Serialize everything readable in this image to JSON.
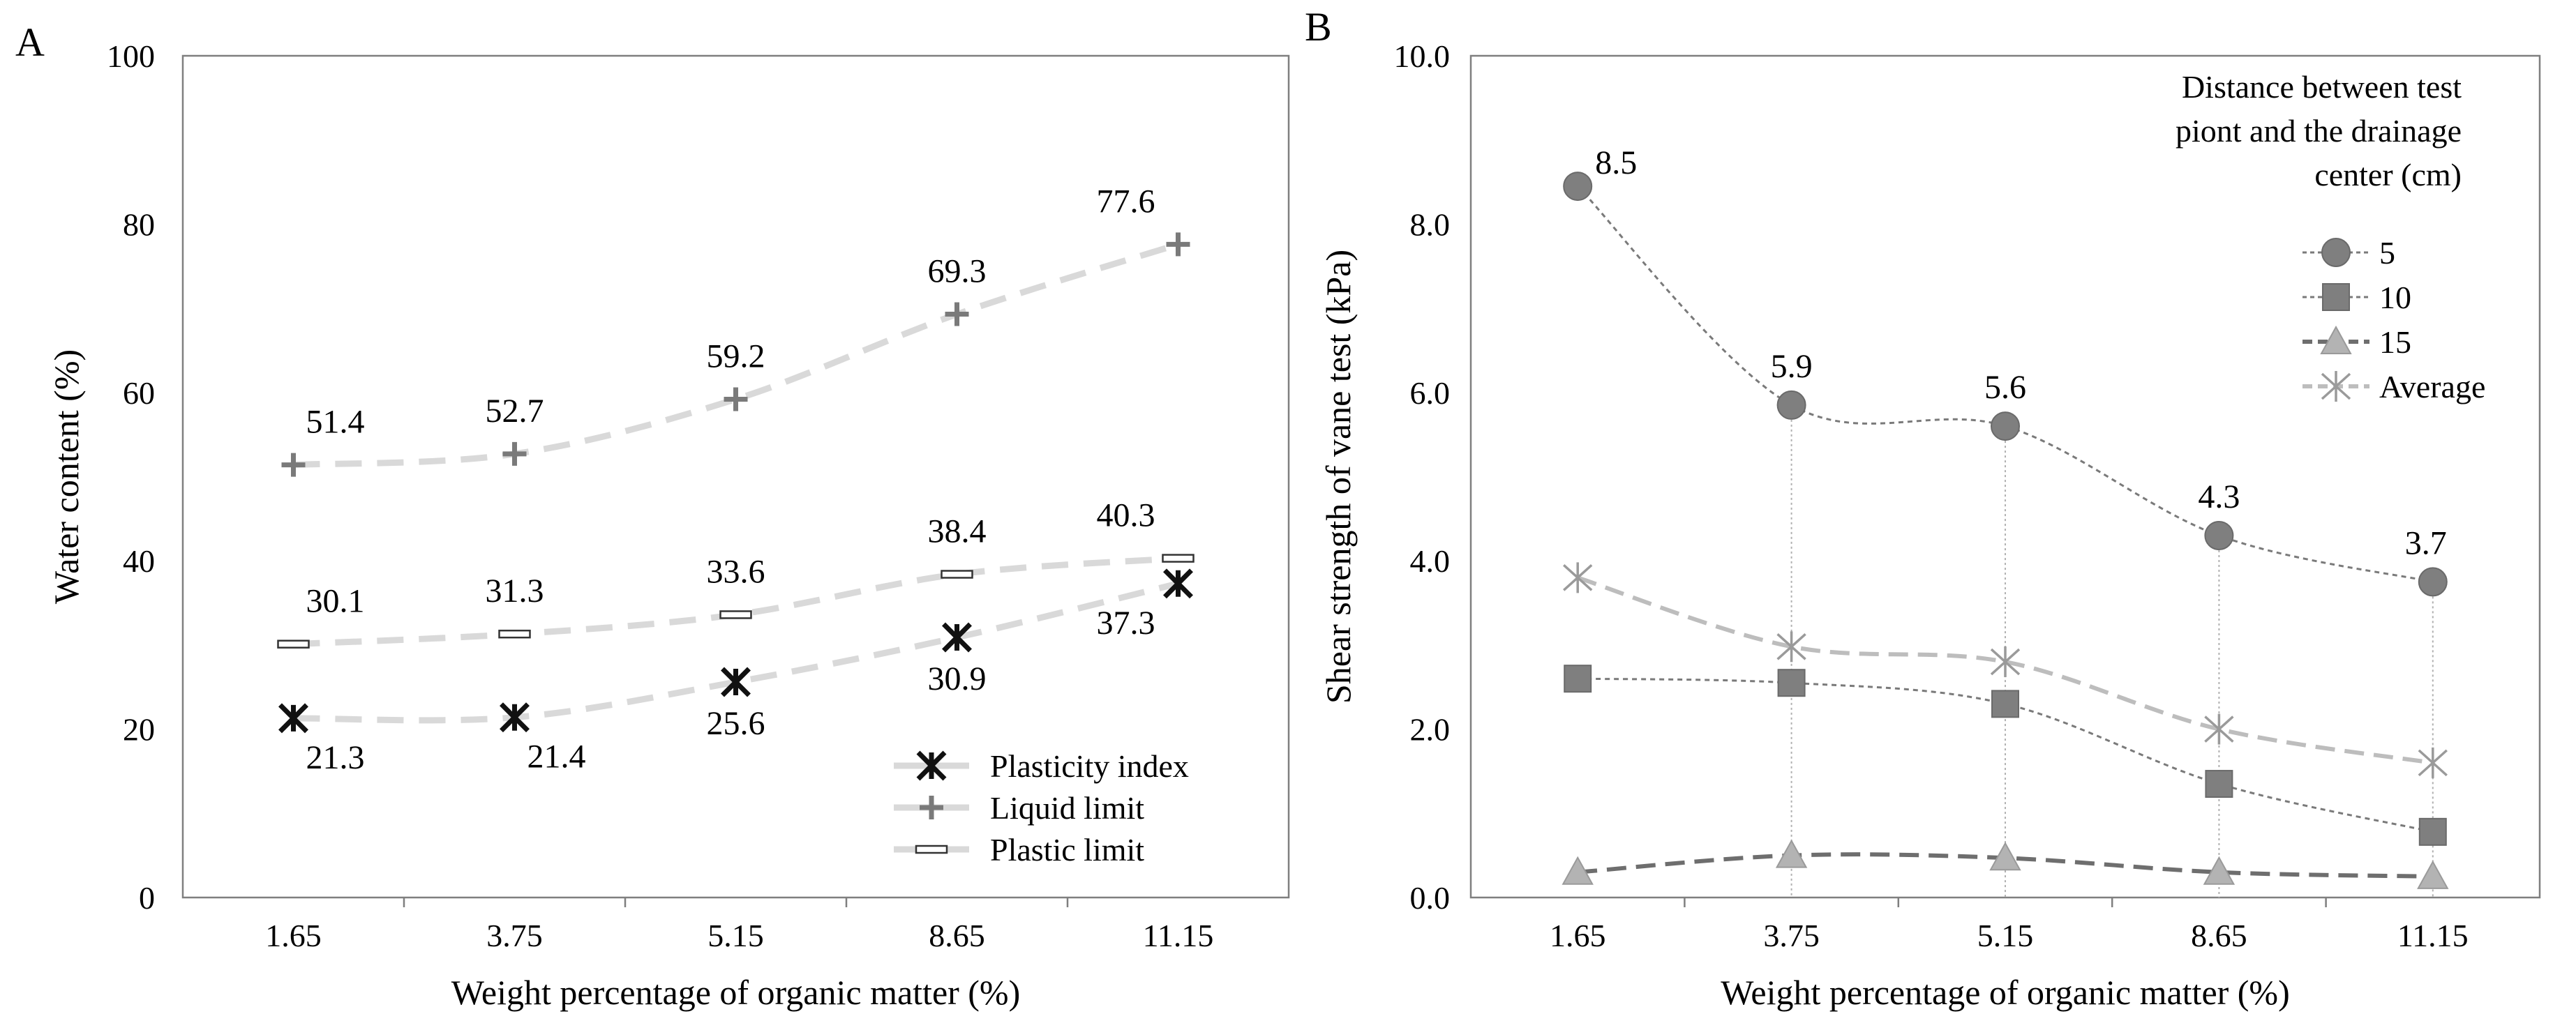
{
  "chart_data": [
    {
      "panel": "A",
      "type": "line",
      "xlabel": "Weight percentage of organic matter (%)",
      "ylabel": "Water content (%)",
      "categories": [
        "1.65",
        "3.75",
        "5.15",
        "8.65",
        "11.15"
      ],
      "ylim": [
        0,
        100
      ],
      "yticks": [
        "0",
        "20",
        "40",
        "60",
        "80",
        "100"
      ],
      "grid": false,
      "legend_position": "bottom-right",
      "series": [
        {
          "name": "Plasticity index",
          "marker": "x-star",
          "values": [
            21.3,
            21.4,
            25.6,
            30.9,
            37.3
          ],
          "labels": [
            "21.3",
            "21.4",
            "25.6",
            "30.9",
            "37.3"
          ]
        },
        {
          "name": "Liquid limit",
          "marker": "plus",
          "values": [
            51.4,
            52.7,
            59.2,
            69.3,
            77.6
          ],
          "labels": [
            "51.4",
            "52.7",
            "59.2",
            "69.3",
            "77.6"
          ]
        },
        {
          "name": "Plastic limit",
          "marker": "bar",
          "values": [
            30.1,
            31.3,
            33.6,
            38.4,
            40.3
          ],
          "labels": [
            "30.1",
            "31.3",
            "33.6",
            "38.4",
            "40.3"
          ]
        }
      ]
    },
    {
      "panel": "B",
      "type": "line",
      "xlabel": "Weight percentage of organic matter (%)",
      "ylabel": "Shear strength of vane test (kPa)",
      "categories": [
        "1.65",
        "3.75",
        "5.15",
        "8.65",
        "11.15"
      ],
      "ylim": [
        0,
        10
      ],
      "yticks": [
        "0.0",
        "2.0",
        "4.0",
        "6.0",
        "8.0",
        "10.0"
      ],
      "grid": false,
      "legend_title": [
        "Distance between test",
        "piont and the drainage",
        "center (cm)"
      ],
      "legend_position": "top-right",
      "series": [
        {
          "name": "5",
          "marker": "circle",
          "values": [
            8.45,
            5.85,
            5.6,
            4.3,
            3.75
          ],
          "labels": [
            "8.5",
            "5.9",
            "5.6",
            "4.3",
            "3.7"
          ]
        },
        {
          "name": "10",
          "marker": "square",
          "values": [
            2.6,
            2.55,
            2.3,
            1.35,
            0.78
          ]
        },
        {
          "name": "15",
          "marker": "triangle",
          "values": [
            0.3,
            0.5,
            0.47,
            0.3,
            0.25
          ]
        },
        {
          "name": "Average",
          "marker": "asterisk",
          "values": [
            3.8,
            2.98,
            2.8,
            2.0,
            1.6
          ]
        }
      ]
    }
  ]
}
